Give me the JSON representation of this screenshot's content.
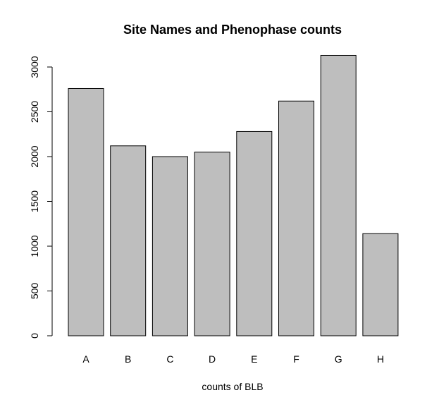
{
  "chart_data": {
    "type": "bar",
    "title": "Site Names and Phenophase counts",
    "xlabel": "counts of BLB",
    "ylabel": "",
    "categories": [
      "A",
      "B",
      "C",
      "D",
      "E",
      "F",
      "G",
      "H"
    ],
    "values": [
      2760,
      2120,
      2000,
      2050,
      2280,
      2620,
      3130,
      1140
    ],
    "ylim": [
      0,
      3000
    ],
    "yticks": [
      0,
      500,
      1000,
      1500,
      2000,
      2500,
      3000
    ],
    "bar_color": "#bebebe",
    "grid": false,
    "legend": "none"
  }
}
